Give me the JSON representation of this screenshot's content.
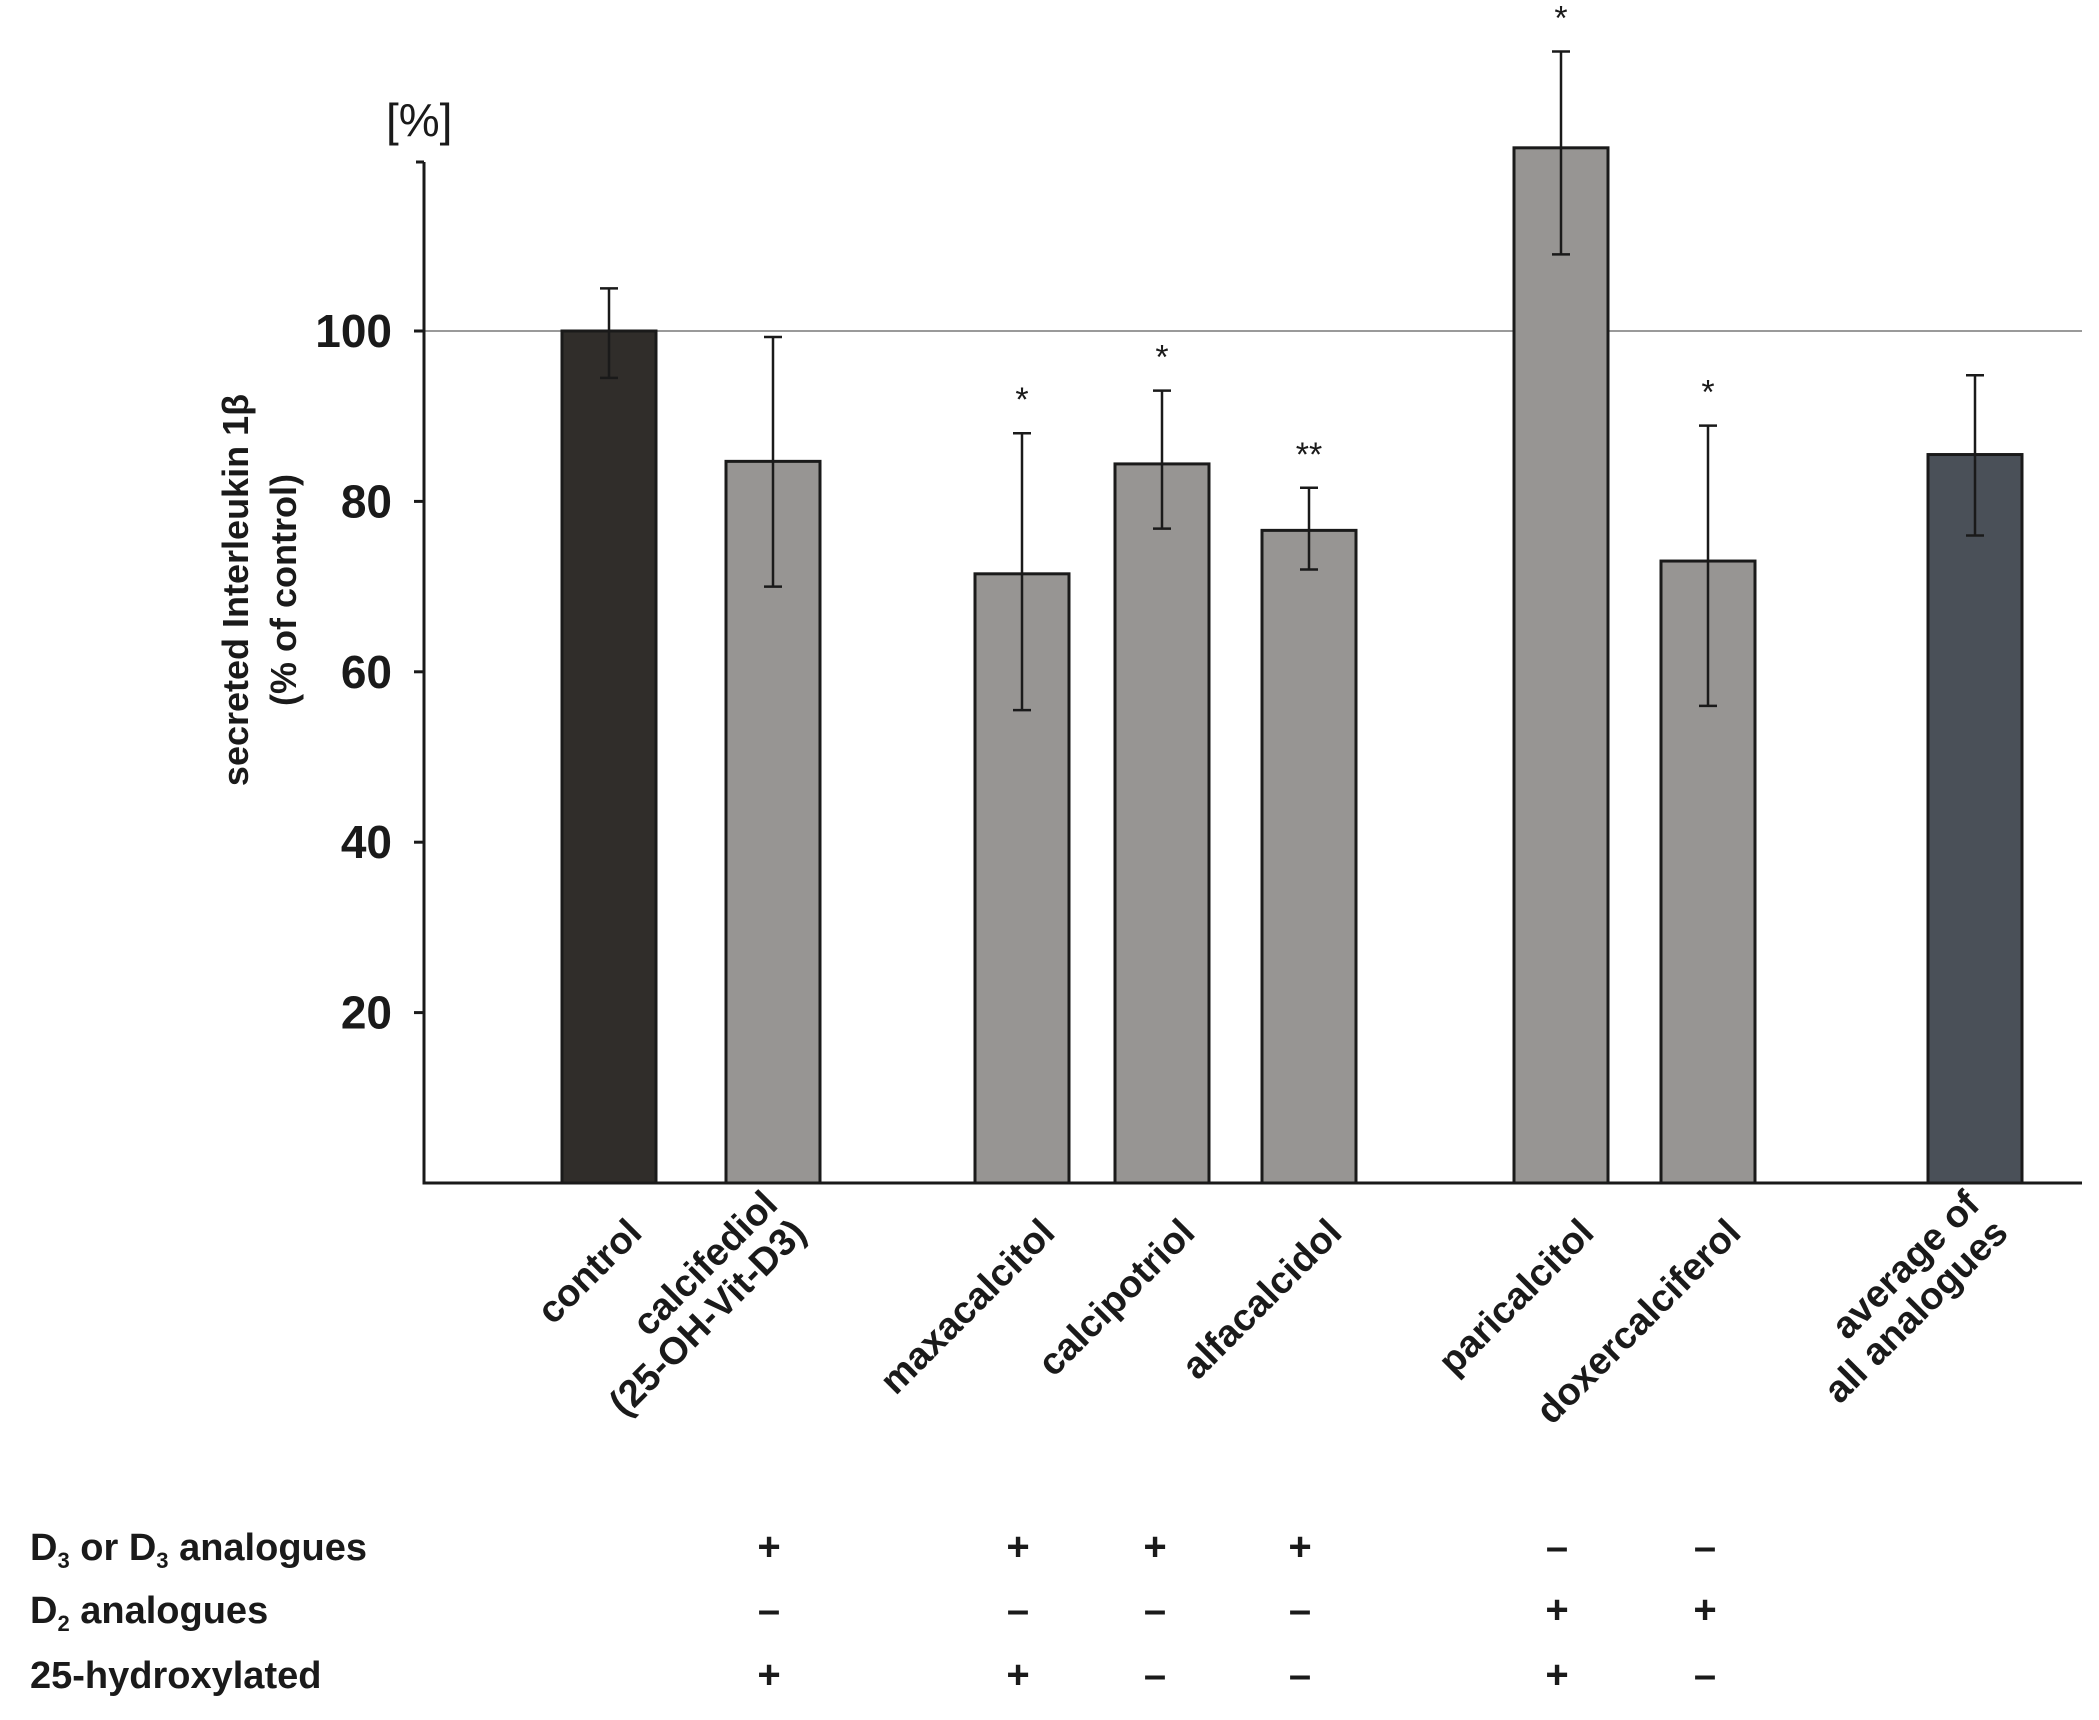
{
  "chart_data": {
    "type": "bar",
    "title": "",
    "unit_label": "[%]",
    "ylabel_line1": "secreted Interleukin 1β",
    "ylabel_line2": "(% of control)",
    "ylim": [
      0,
      120
    ],
    "yticks": [
      20,
      40,
      60,
      80,
      100
    ],
    "reference_line": 100,
    "categories": [
      {
        "label": [
          "control"
        ],
        "value": 100,
        "err_low": 94.5,
        "err_high": 105,
        "sig": "",
        "color": "#302d2a"
      },
      {
        "label": [
          "calcifediol",
          "(25-OH-Vit-D3)"
        ],
        "value": 84.7,
        "err_low": 70,
        "err_high": 99.3,
        "sig": "",
        "color": "#979593"
      },
      {
        "label": [
          "maxacalcitol"
        ],
        "value": 71.5,
        "err_low": 55.5,
        "err_high": 88,
        "sig": "*",
        "color": "#979593"
      },
      {
        "label": [
          "calcipotriol"
        ],
        "value": 84.4,
        "err_low": 76.8,
        "err_high": 93,
        "sig": "*",
        "color": "#979593"
      },
      {
        "label": [
          "alfacalcidol"
        ],
        "value": 76.6,
        "err_low": 72,
        "err_high": 81.6,
        "sig": "**",
        "color": "#979593"
      },
      {
        "label": [
          "paricalcitol"
        ],
        "value": 121.5,
        "err_low": 109,
        "err_high": 132.8,
        "sig": "*",
        "color": "#979593"
      },
      {
        "label": [
          "doxercalciferol"
        ],
        "value": 73,
        "err_low": 56,
        "err_high": 88.9,
        "sig": "*",
        "color": "#979593"
      },
      {
        "label": [
          "average of",
          "all analogues"
        ],
        "value": 85.5,
        "err_low": 76,
        "err_high": 94.8,
        "sig": "",
        "color": "#4a5058"
      }
    ]
  },
  "annotation_table": {
    "rows": [
      {
        "label_main": "D",
        "label_sub": "3",
        "label_mid": " or D",
        "label_sub2": "3",
        "label_rest": " analogues",
        "signs": [
          "",
          "+",
          "+",
          "+",
          "+",
          "–",
          "–",
          ""
        ]
      },
      {
        "label_main": "D",
        "label_sub": "2",
        "label_mid": " analogues",
        "label_sub2": "",
        "label_rest": "",
        "signs": [
          "",
          "–",
          "–",
          "–",
          "–",
          "+",
          "+",
          ""
        ]
      },
      {
        "label_main": "25-hydroxylated",
        "label_sub": "",
        "label_mid": "",
        "label_sub2": "",
        "label_rest": "",
        "signs": [
          "",
          "+",
          "+",
          "–",
          "–",
          "+",
          "–",
          ""
        ]
      }
    ]
  }
}
